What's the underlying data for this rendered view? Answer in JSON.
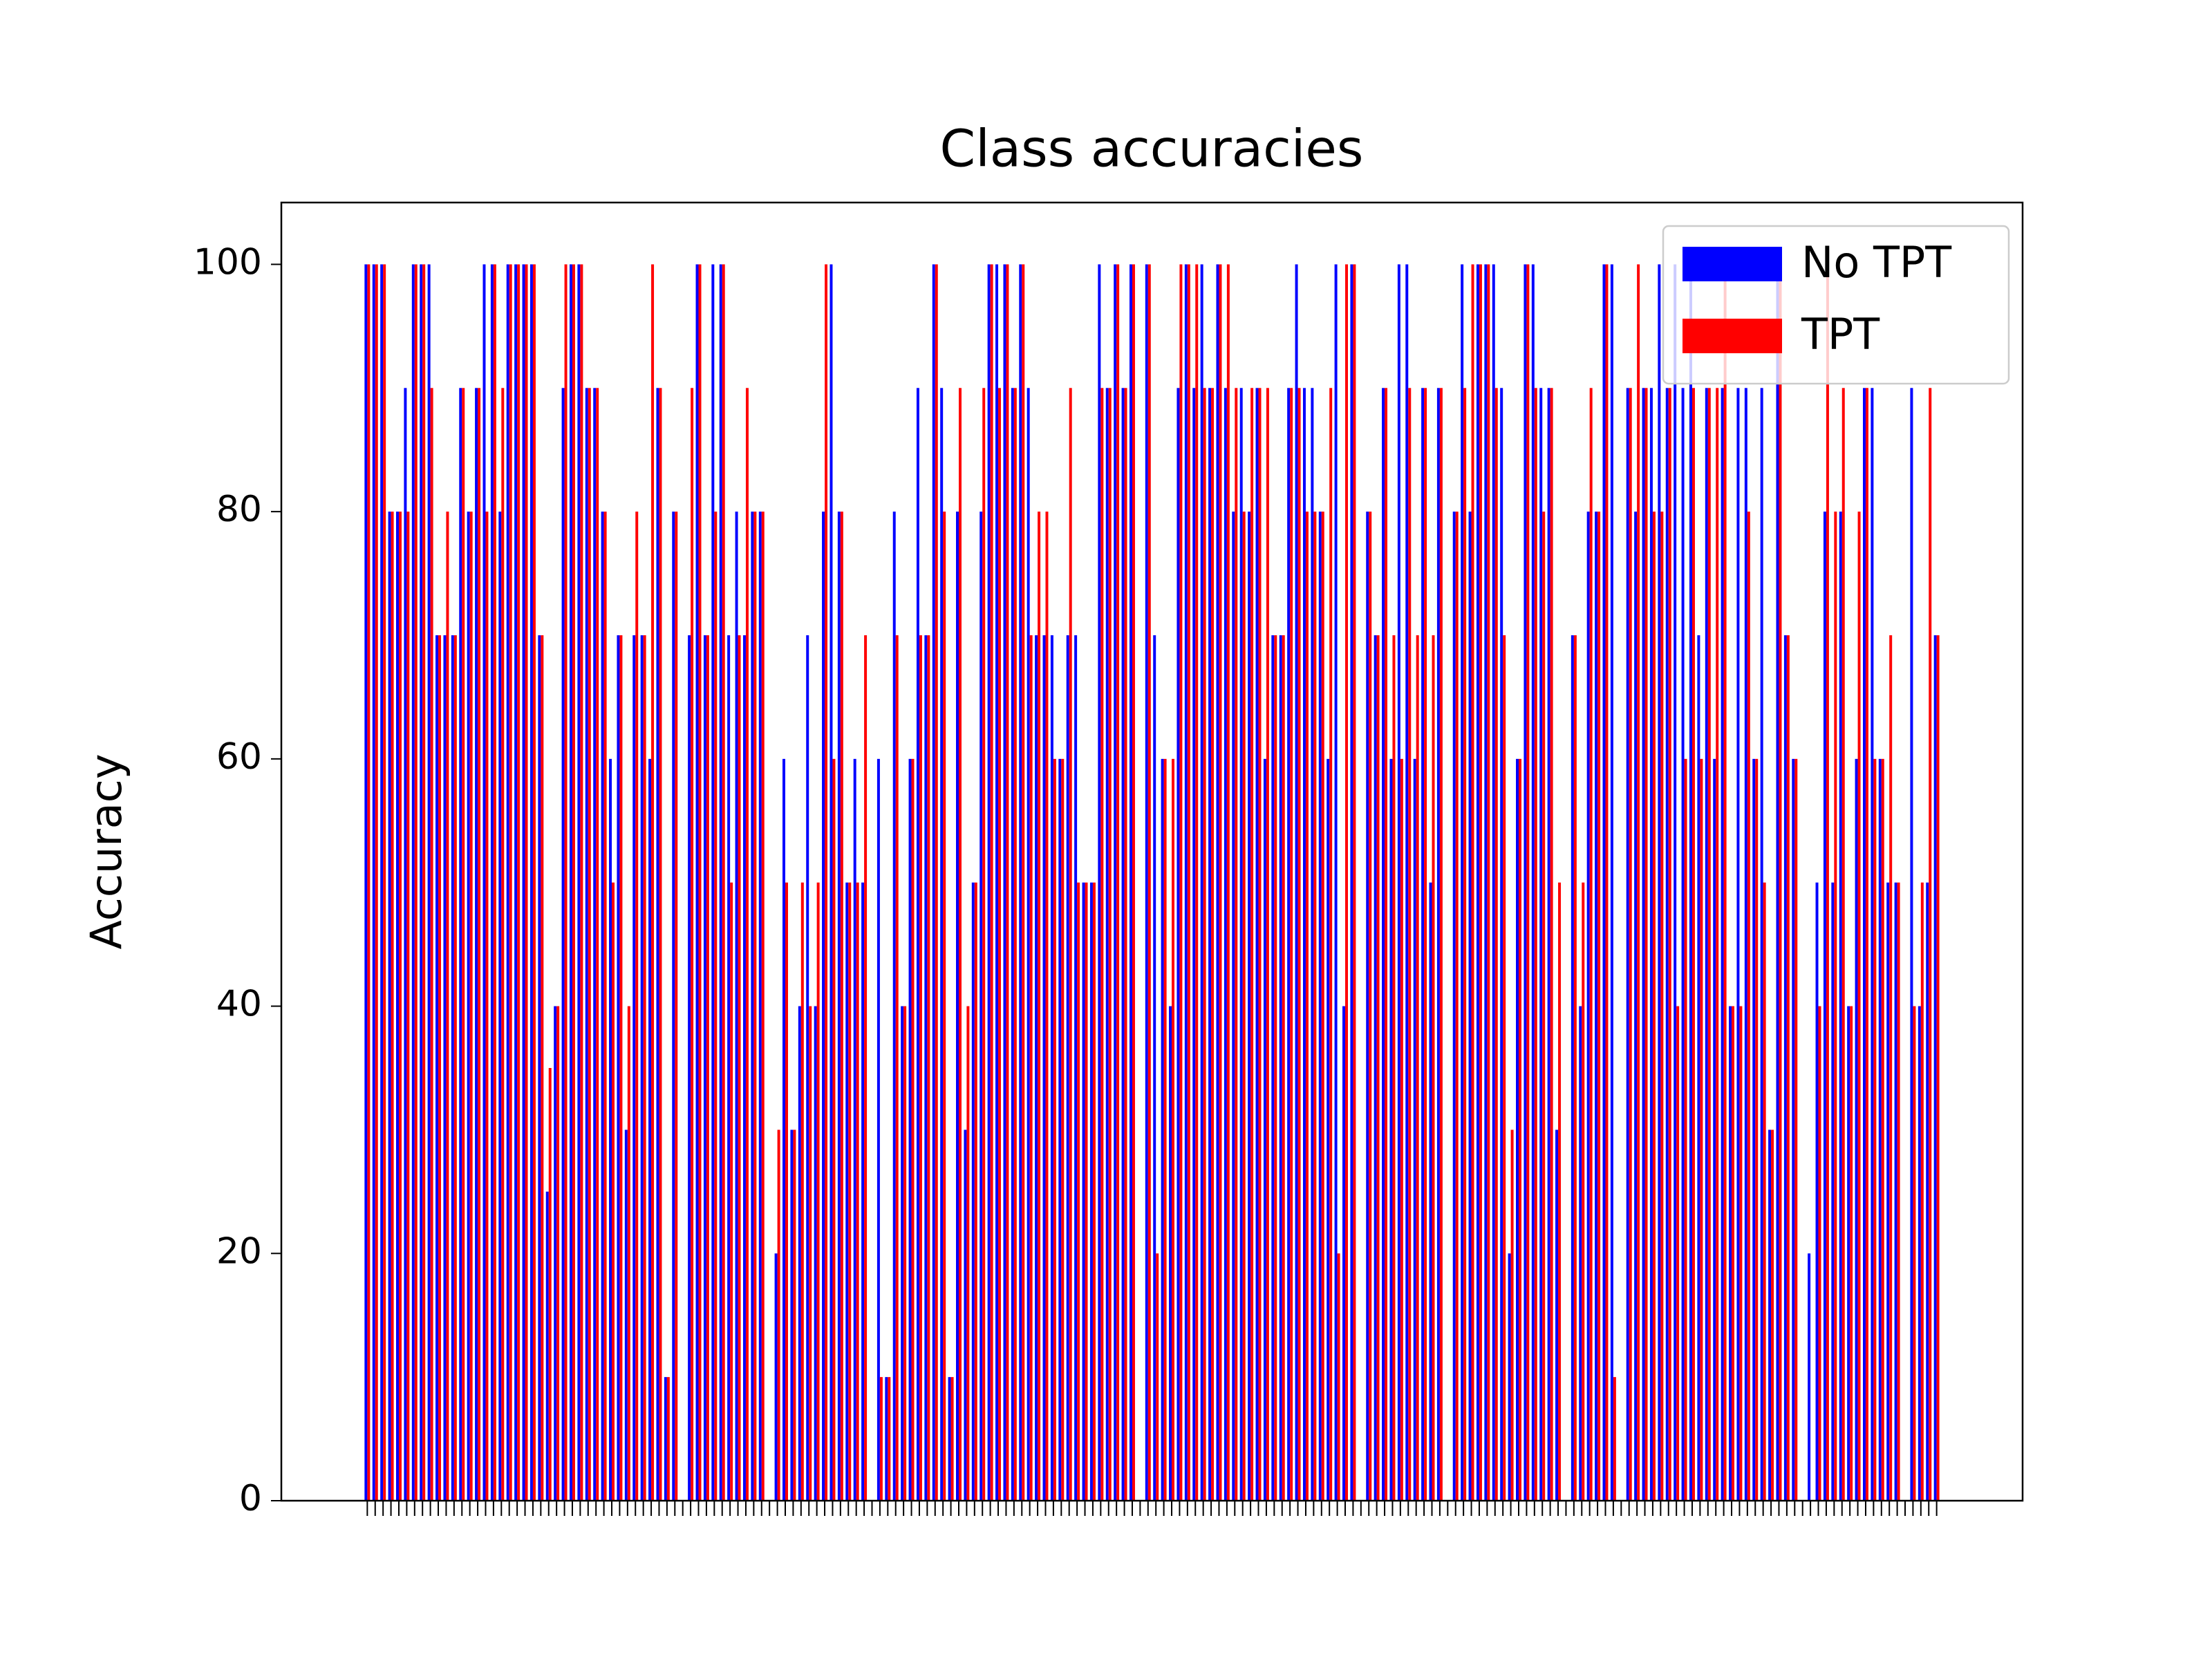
{
  "chart_data": {
    "type": "bar",
    "title": "Class accuracies",
    "y_label": "Accuracy",
    "categories": [
      null,
      null,
      null,
      null,
      null,
      null,
      null,
      null,
      null,
      null,
      null,
      null,
      null,
      null,
      null,
      null,
      null,
      null,
      null,
      null,
      null,
      null,
      null,
      null,
      null,
      null,
      null,
      null,
      null,
      null,
      null,
      null,
      null,
      null,
      null,
      null,
      null,
      null,
      null,
      null,
      null,
      null,
      null,
      null,
      null,
      null,
      null,
      null,
      null,
      null,
      null,
      null,
      null,
      null,
      null,
      null,
      null,
      null,
      null,
      null,
      null,
      null,
      null,
      null,
      null,
      null,
      null,
      null,
      null,
      null,
      null,
      null,
      null,
      null,
      null,
      null,
      null,
      null,
      null,
      null,
      null,
      null,
      null,
      null,
      null,
      null,
      null,
      null,
      null,
      null,
      null,
      null,
      null,
      null,
      null,
      null,
      null,
      null,
      null,
      null,
      null,
      null,
      null,
      null,
      null,
      null,
      null,
      null,
      null,
      null,
      null,
      null,
      null,
      null,
      null,
      null,
      null,
      null,
      null,
      null,
      null,
      null,
      null,
      null,
      null,
      null,
      null,
      null,
      null,
      null,
      null,
      null,
      null,
      null,
      null,
      null,
      null,
      null,
      null,
      null,
      null,
      null,
      null,
      null,
      null,
      null,
      null,
      null,
      null,
      null,
      null,
      null,
      null,
      null,
      null,
      null,
      null,
      null,
      null,
      null,
      null,
      null,
      null,
      null,
      null,
      null,
      null,
      null,
      null,
      null,
      null,
      null,
      null,
      null,
      null,
      null,
      null,
      null,
      null,
      null,
      null,
      null,
      null,
      null,
      null,
      null,
      null,
      null,
      null,
      null,
      null,
      null,
      null,
      null,
      null,
      null,
      null,
      null,
      null,
      null
    ],
    "series": [
      {
        "name": "No TPT",
        "color": "#0000ff",
        "values": [
          100,
          100,
          100,
          80,
          80,
          90,
          100,
          100,
          100,
          70,
          70,
          70,
          90,
          80,
          90,
          100,
          100,
          80,
          100,
          100,
          100,
          100,
          70,
          25,
          40,
          90,
          100,
          100,
          90,
          90,
          80,
          60,
          70,
          30,
          70,
          70,
          60,
          90,
          10,
          80,
          0,
          70,
          100,
          70,
          100,
          100,
          70,
          80,
          70,
          80,
          80,
          0,
          20,
          60,
          30,
          40,
          70,
          40,
          80,
          100,
          80,
          50,
          60,
          50,
          0,
          60,
          10,
          80,
          40,
          60,
          90,
          70,
          100,
          90,
          10,
          80,
          30,
          50,
          80,
          100,
          100,
          100,
          90,
          100,
          90,
          70,
          70,
          70,
          60,
          70,
          70,
          50,
          50,
          100,
          90,
          100,
          90,
          100,
          0,
          100,
          70,
          60,
          40,
          90,
          100,
          90,
          100,
          90,
          100,
          90,
          80,
          90,
          80,
          90,
          60,
          70,
          70,
          90,
          100,
          90,
          90,
          80,
          60,
          100,
          40,
          100,
          0,
          80,
          70,
          90,
          60,
          100,
          100,
          60,
          90,
          50,
          90,
          0,
          80,
          100,
          80,
          100,
          100,
          100,
          90,
          20,
          60,
          100,
          100,
          90,
          90,
          30,
          0,
          70,
          40,
          80,
          80,
          100,
          100,
          0,
          90,
          80,
          90,
          90,
          100,
          90,
          100,
          90,
          100,
          70,
          90,
          60,
          90,
          40,
          90,
          90,
          60,
          90,
          30,
          100,
          70,
          60,
          0,
          20,
          50,
          80,
          50,
          80,
          40,
          60,
          90,
          90,
          60,
          50,
          50,
          0,
          90,
          40,
          50,
          70
        ]
      },
      {
        "name": "TPT",
        "color": "#ff0000",
        "values": [
          100,
          100,
          100,
          80,
          80,
          80,
          100,
          100,
          90,
          70,
          80,
          70,
          90,
          80,
          90,
          80,
          100,
          90,
          100,
          100,
          100,
          100,
          70,
          35,
          40,
          100,
          100,
          100,
          90,
          90,
          80,
          50,
          70,
          40,
          80,
          70,
          100,
          90,
          10,
          80,
          0,
          90,
          100,
          70,
          80,
          100,
          50,
          70,
          90,
          80,
          80,
          0,
          30,
          50,
          30,
          50,
          40,
          50,
          100,
          60,
          80,
          50,
          50,
          70,
          0,
          10,
          10,
          70,
          40,
          60,
          70,
          70,
          100,
          80,
          10,
          90,
          40,
          50,
          90,
          100,
          90,
          100,
          90,
          100,
          70,
          80,
          80,
          60,
          60,
          90,
          50,
          50,
          50,
          90,
          90,
          100,
          90,
          100,
          0,
          100,
          20,
          60,
          60,
          100,
          100,
          100,
          90,
          90,
          100,
          100,
          90,
          80,
          90,
          90,
          90,
          70,
          70,
          90,
          90,
          80,
          80,
          80,
          90,
          20,
          100,
          100,
          0,
          80,
          70,
          90,
          70,
          60,
          90,
          70,
          90,
          70,
          90,
          0,
          80,
          90,
          100,
          100,
          100,
          90,
          70,
          30,
          60,
          100,
          90,
          80,
          90,
          50,
          0,
          70,
          50,
          90,
          80,
          100,
          10,
          0,
          90,
          100,
          90,
          80,
          80,
          90,
          40,
          60,
          90,
          60,
          90,
          90,
          100,
          40,
          40,
          80,
          60,
          50,
          30,
          100,
          70,
          60,
          0,
          0,
          40,
          100,
          80,
          90,
          40,
          80,
          90,
          60,
          60,
          70,
          50,
          0,
          40,
          50,
          90,
          70
        ]
      }
    ],
    "ylim": [
      0,
      105
    ],
    "yticks": [
      0,
      20,
      40,
      60,
      80,
      100
    ],
    "grid": false,
    "legend": "upper right"
  }
}
